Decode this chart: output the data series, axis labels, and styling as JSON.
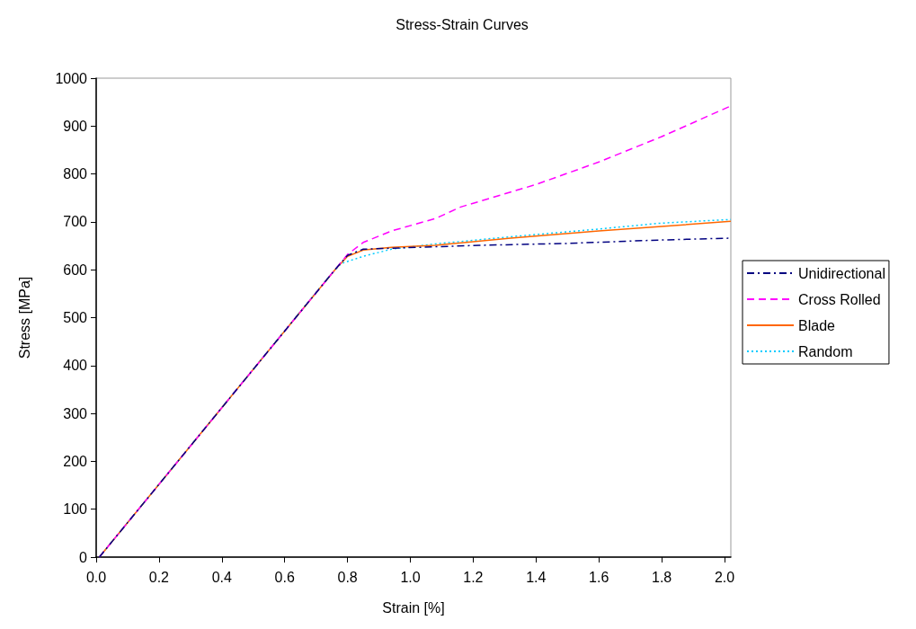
{
  "chart_data": {
    "type": "line",
    "title": "Stress-Strain Curves",
    "xlabel": "Strain [%]",
    "ylabel": "Stress [MPa]",
    "xlim": [
      0,
      2.02
    ],
    "xticks": [
      {
        "value": 0,
        "label": "0.0"
      },
      0.2,
      0.4,
      0.6,
      0.8,
      {
        "value": 1,
        "label": "1.0"
      },
      1.2,
      1.4,
      1.6,
      1.8,
      {
        "value": 2,
        "label": "2.0"
      }
    ],
    "ylim": [
      0,
      1000
    ],
    "yticks": [
      0,
      100,
      200,
      300,
      400,
      500,
      600,
      700,
      800,
      900,
      1000
    ],
    "grid": false,
    "legend": "right",
    "marker": "none",
    "series": [
      {
        "name": "Unidirectional",
        "color": "#000080",
        "line_style": "dashdot",
        "x": [
          0.01,
          0.76,
          0.8,
          0.85,
          0.94,
          1.22,
          1.5,
          1.79,
          2.02
        ],
        "values": [
          0,
          600,
          630,
          643,
          645,
          651,
          655,
          662,
          666
        ]
      },
      {
        "name": "Cross Rolled",
        "color": "#ff00ff",
        "line_style": "dashed",
        "x": [
          0.01,
          0.77,
          0.8,
          0.85,
          0.94,
          1.08,
          1.16,
          1.4,
          1.6,
          1.8,
          2.02
        ],
        "values": [
          0,
          608,
          632,
          657,
          681,
          707,
          731,
          778,
          825,
          878,
          942
        ]
      },
      {
        "name": "Blade",
        "color": "#ff6600",
        "line_style": "solid",
        "x": [
          0.01,
          0.76,
          0.8,
          0.85,
          0.94,
          1.08,
          1.32,
          1.6,
          1.79,
          2.02
        ],
        "values": [
          0,
          600,
          628,
          641,
          647,
          651,
          666,
          681,
          690,
          701
        ]
      },
      {
        "name": "Random",
        "color": "#00ccff",
        "line_style": "dotted",
        "x": [
          0.01,
          0.74,
          0.78,
          0.85,
          0.94,
          1.08,
          1.32,
          1.6,
          1.79,
          2.02
        ],
        "values": [
          0,
          585,
          613,
          628,
          643,
          654,
          669,
          685,
          697,
          705
        ]
      }
    ]
  }
}
